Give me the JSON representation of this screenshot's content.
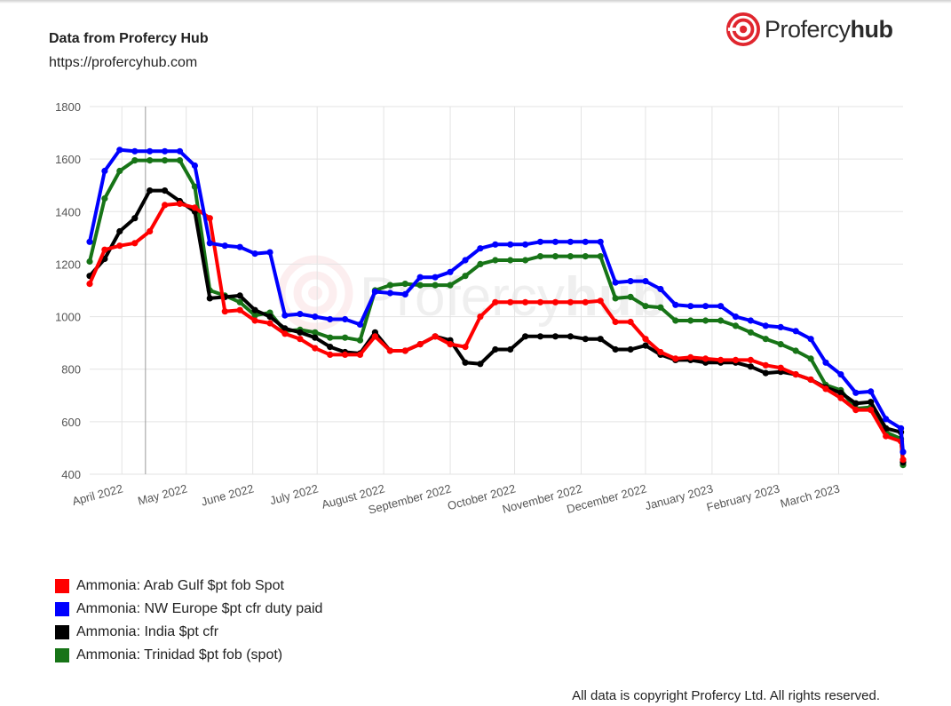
{
  "header": {
    "title": "Data from Profercy Hub",
    "subtitle": "https://profercyhub.com",
    "logo_text_regular": "Profercy",
    "logo_text_bold": "hub"
  },
  "footer": {
    "copyright": "All data is copyright Profercy Ltd. All rights reserved."
  },
  "chart_data": {
    "type": "line",
    "title": "",
    "xlabel": "",
    "ylabel": "",
    "ylim": [
      400,
      1800
    ],
    "yticks": [
      400,
      600,
      800,
      1000,
      1200,
      1400,
      1600,
      1800
    ],
    "xlim": [
      "2022-03-17",
      "2023-03-31"
    ],
    "xticks": [
      {
        "date": "2022-04-01",
        "label": "April 2022"
      },
      {
        "date": "2022-05-01",
        "label": "May 2022"
      },
      {
        "date": "2022-06-01",
        "label": "June 2022"
      },
      {
        "date": "2022-07-01",
        "label": "July 2022"
      },
      {
        "date": "2022-08-01",
        "label": "August 2022"
      },
      {
        "date": "2022-09-01",
        "label": "September 2022"
      },
      {
        "date": "2022-10-01",
        "label": "October 2022"
      },
      {
        "date": "2022-11-01",
        "label": "November 2022"
      },
      {
        "date": "2022-12-01",
        "label": "December 2022"
      },
      {
        "date": "2023-01-01",
        "label": "January 2023"
      },
      {
        "date": "2023-02-01",
        "label": "February 2023"
      },
      {
        "date": "2023-03-01",
        "label": "March 2023"
      }
    ],
    "grid": true,
    "legend_position": "bottom-left",
    "series": [
      {
        "name": "Ammonia: Arab Gulf $pt fob Spot",
        "color": "#ff0000",
        "points": [
          [
            "2022-03-17",
            1125
          ],
          [
            "2022-03-24",
            1255
          ],
          [
            "2022-03-31",
            1270
          ],
          [
            "2022-04-07",
            1280
          ],
          [
            "2022-04-14",
            1325
          ],
          [
            "2022-04-21",
            1425
          ],
          [
            "2022-04-28",
            1430
          ],
          [
            "2022-05-05",
            1415
          ],
          [
            "2022-05-12",
            1375
          ],
          [
            "2022-05-19",
            1020
          ],
          [
            "2022-05-26",
            1025
          ],
          [
            "2022-06-02",
            985
          ],
          [
            "2022-06-09",
            975
          ],
          [
            "2022-06-16",
            935
          ],
          [
            "2022-06-23",
            915
          ],
          [
            "2022-06-30",
            880
          ],
          [
            "2022-07-07",
            855
          ],
          [
            "2022-07-14",
            855
          ],
          [
            "2022-07-21",
            855
          ],
          [
            "2022-07-28",
            925
          ],
          [
            "2022-08-04",
            870
          ],
          [
            "2022-08-11",
            870
          ],
          [
            "2022-08-18",
            895
          ],
          [
            "2022-08-25",
            925
          ],
          [
            "2022-09-01",
            895
          ],
          [
            "2022-09-08",
            885
          ],
          [
            "2022-09-15",
            1000
          ],
          [
            "2022-09-22",
            1055
          ],
          [
            "2022-09-29",
            1055
          ],
          [
            "2022-10-06",
            1055
          ],
          [
            "2022-10-13",
            1055
          ],
          [
            "2022-10-20",
            1055
          ],
          [
            "2022-10-27",
            1055
          ],
          [
            "2022-11-03",
            1055
          ],
          [
            "2022-11-10",
            1060
          ],
          [
            "2022-11-17",
            980
          ],
          [
            "2022-11-24",
            980
          ],
          [
            "2022-12-01",
            915
          ],
          [
            "2022-12-08",
            865
          ],
          [
            "2022-12-15",
            840
          ],
          [
            "2022-12-22",
            845
          ],
          [
            "2022-12-29",
            840
          ],
          [
            "2023-01-05",
            835
          ],
          [
            "2023-01-12",
            835
          ],
          [
            "2023-01-19",
            835
          ],
          [
            "2023-01-26",
            815
          ],
          [
            "2023-02-02",
            805
          ],
          [
            "2023-02-09",
            780
          ],
          [
            "2023-02-16",
            760
          ],
          [
            "2023-02-23",
            725
          ],
          [
            "2023-03-02",
            690
          ],
          [
            "2023-03-09",
            645
          ],
          [
            "2023-03-16",
            645
          ],
          [
            "2023-03-23",
            545
          ],
          [
            "2023-03-30",
            525
          ],
          [
            "2023-03-31",
            455
          ]
        ]
      },
      {
        "name": "Ammonia: NW Europe $pt cfr duty paid",
        "color": "#0000ff",
        "points": [
          [
            "2022-03-17",
            1285
          ],
          [
            "2022-03-24",
            1555
          ],
          [
            "2022-03-31",
            1635
          ],
          [
            "2022-04-07",
            1630
          ],
          [
            "2022-04-14",
            1630
          ],
          [
            "2022-04-21",
            1630
          ],
          [
            "2022-04-28",
            1630
          ],
          [
            "2022-05-05",
            1575
          ],
          [
            "2022-05-12",
            1280
          ],
          [
            "2022-05-19",
            1270
          ],
          [
            "2022-05-26",
            1265
          ],
          [
            "2022-06-02",
            1240
          ],
          [
            "2022-06-09",
            1245
          ],
          [
            "2022-06-16",
            1005
          ],
          [
            "2022-06-23",
            1010
          ],
          [
            "2022-06-30",
            1000
          ],
          [
            "2022-07-07",
            990
          ],
          [
            "2022-07-14",
            990
          ],
          [
            "2022-07-21",
            970
          ],
          [
            "2022-07-28",
            1095
          ],
          [
            "2022-08-04",
            1090
          ],
          [
            "2022-08-11",
            1085
          ],
          [
            "2022-08-18",
            1150
          ],
          [
            "2022-08-25",
            1150
          ],
          [
            "2022-09-01",
            1170
          ],
          [
            "2022-09-08",
            1215
          ],
          [
            "2022-09-15",
            1260
          ],
          [
            "2022-09-22",
            1275
          ],
          [
            "2022-09-29",
            1275
          ],
          [
            "2022-10-06",
            1275
          ],
          [
            "2022-10-13",
            1285
          ],
          [
            "2022-10-20",
            1285
          ],
          [
            "2022-10-27",
            1285
          ],
          [
            "2022-11-03",
            1285
          ],
          [
            "2022-11-10",
            1285
          ],
          [
            "2022-11-17",
            1130
          ],
          [
            "2022-11-24",
            1135
          ],
          [
            "2022-12-01",
            1135
          ],
          [
            "2022-12-08",
            1105
          ],
          [
            "2022-12-15",
            1045
          ],
          [
            "2022-12-22",
            1040
          ],
          [
            "2022-12-29",
            1040
          ],
          [
            "2023-01-05",
            1040
          ],
          [
            "2023-01-12",
            1000
          ],
          [
            "2023-01-19",
            985
          ],
          [
            "2023-01-26",
            965
          ],
          [
            "2023-02-02",
            960
          ],
          [
            "2023-02-09",
            945
          ],
          [
            "2023-02-16",
            915
          ],
          [
            "2023-02-23",
            825
          ],
          [
            "2023-03-02",
            780
          ],
          [
            "2023-03-09",
            710
          ],
          [
            "2023-03-16",
            715
          ],
          [
            "2023-03-23",
            610
          ],
          [
            "2023-03-30",
            575
          ],
          [
            "2023-03-31",
            485
          ]
        ]
      },
      {
        "name": "Ammonia: India $pt cfr",
        "color": "#000000",
        "points": [
          [
            "2022-03-17",
            1155
          ],
          [
            "2022-03-24",
            1220
          ],
          [
            "2022-03-31",
            1325
          ],
          [
            "2022-04-07",
            1375
          ],
          [
            "2022-04-14",
            1480
          ],
          [
            "2022-04-21",
            1480
          ],
          [
            "2022-04-28",
            1440
          ],
          [
            "2022-05-05",
            1400
          ],
          [
            "2022-05-12",
            1070
          ],
          [
            "2022-05-19",
            1075
          ],
          [
            "2022-05-26",
            1080
          ],
          [
            "2022-06-02",
            1025
          ],
          [
            "2022-06-09",
            1000
          ],
          [
            "2022-06-16",
            955
          ],
          [
            "2022-06-23",
            940
          ],
          [
            "2022-06-30",
            920
          ],
          [
            "2022-07-07",
            885
          ],
          [
            "2022-07-14",
            865
          ],
          [
            "2022-07-21",
            860
          ],
          [
            "2022-07-28",
            940
          ],
          [
            "2022-08-04",
            870
          ],
          [
            "2022-08-11",
            870
          ],
          [
            "2022-08-18",
            895
          ],
          [
            "2022-08-25",
            925
          ],
          [
            "2022-09-01",
            910
          ],
          [
            "2022-09-08",
            825
          ],
          [
            "2022-09-15",
            820
          ],
          [
            "2022-09-22",
            875
          ],
          [
            "2022-09-29",
            875
          ],
          [
            "2022-10-06",
            925
          ],
          [
            "2022-10-13",
            925
          ],
          [
            "2022-10-20",
            925
          ],
          [
            "2022-10-27",
            925
          ],
          [
            "2022-11-03",
            915
          ],
          [
            "2022-11-10",
            915
          ],
          [
            "2022-11-17",
            875
          ],
          [
            "2022-11-24",
            875
          ],
          [
            "2022-12-01",
            890
          ],
          [
            "2022-12-08",
            855
          ],
          [
            "2022-12-15",
            835
          ],
          [
            "2022-12-22",
            835
          ],
          [
            "2022-12-29",
            825
          ],
          [
            "2023-01-05",
            825
          ],
          [
            "2023-01-12",
            825
          ],
          [
            "2023-01-19",
            810
          ],
          [
            "2023-01-26",
            785
          ],
          [
            "2023-02-02",
            790
          ],
          [
            "2023-02-09",
            780
          ],
          [
            "2023-02-16",
            760
          ],
          [
            "2023-02-23",
            730
          ],
          [
            "2023-03-02",
            710
          ],
          [
            "2023-03-09",
            670
          ],
          [
            "2023-03-16",
            675
          ],
          [
            "2023-03-23",
            575
          ],
          [
            "2023-03-30",
            560
          ],
          [
            "2023-03-31",
            445
          ]
        ]
      },
      {
        "name": "Ammonia: Trinidad $pt fob (spot)",
        "color": "#177417",
        "points": [
          [
            "2022-03-17",
            1210
          ],
          [
            "2022-03-24",
            1450
          ],
          [
            "2022-03-31",
            1555
          ],
          [
            "2022-04-07",
            1595
          ],
          [
            "2022-04-14",
            1595
          ],
          [
            "2022-04-21",
            1595
          ],
          [
            "2022-04-28",
            1595
          ],
          [
            "2022-05-05",
            1495
          ],
          [
            "2022-05-12",
            1100
          ],
          [
            "2022-05-19",
            1080
          ],
          [
            "2022-05-26",
            1055
          ],
          [
            "2022-06-02",
            1005
          ],
          [
            "2022-06-09",
            1015
          ],
          [
            "2022-06-16",
            945
          ],
          [
            "2022-06-23",
            950
          ],
          [
            "2022-06-30",
            940
          ],
          [
            "2022-07-07",
            920
          ],
          [
            "2022-07-14",
            920
          ],
          [
            "2022-07-21",
            910
          ],
          [
            "2022-07-28",
            1100
          ],
          [
            "2022-08-04",
            1120
          ],
          [
            "2022-08-11",
            1125
          ],
          [
            "2022-08-18",
            1120
          ],
          [
            "2022-08-25",
            1120
          ],
          [
            "2022-09-01",
            1120
          ],
          [
            "2022-09-08",
            1155
          ],
          [
            "2022-09-15",
            1200
          ],
          [
            "2022-09-22",
            1215
          ],
          [
            "2022-09-29",
            1215
          ],
          [
            "2022-10-06",
            1215
          ],
          [
            "2022-10-13",
            1230
          ],
          [
            "2022-10-20",
            1230
          ],
          [
            "2022-10-27",
            1230
          ],
          [
            "2022-11-03",
            1230
          ],
          [
            "2022-11-10",
            1230
          ],
          [
            "2022-11-17",
            1070
          ],
          [
            "2022-11-24",
            1075
          ],
          [
            "2022-12-01",
            1040
          ],
          [
            "2022-12-08",
            1035
          ],
          [
            "2022-12-15",
            985
          ],
          [
            "2022-12-22",
            985
          ],
          [
            "2022-12-29",
            985
          ],
          [
            "2023-01-05",
            985
          ],
          [
            "2023-01-12",
            965
          ],
          [
            "2023-01-19",
            940
          ],
          [
            "2023-01-26",
            915
          ],
          [
            "2023-02-02",
            895
          ],
          [
            "2023-02-09",
            870
          ],
          [
            "2023-02-16",
            840
          ],
          [
            "2023-02-23",
            740
          ],
          [
            "2023-03-02",
            720
          ],
          [
            "2023-03-09",
            650
          ],
          [
            "2023-03-16",
            655
          ],
          [
            "2023-03-23",
            560
          ],
          [
            "2023-03-30",
            535
          ],
          [
            "2023-03-31",
            435
          ]
        ]
      }
    ]
  }
}
